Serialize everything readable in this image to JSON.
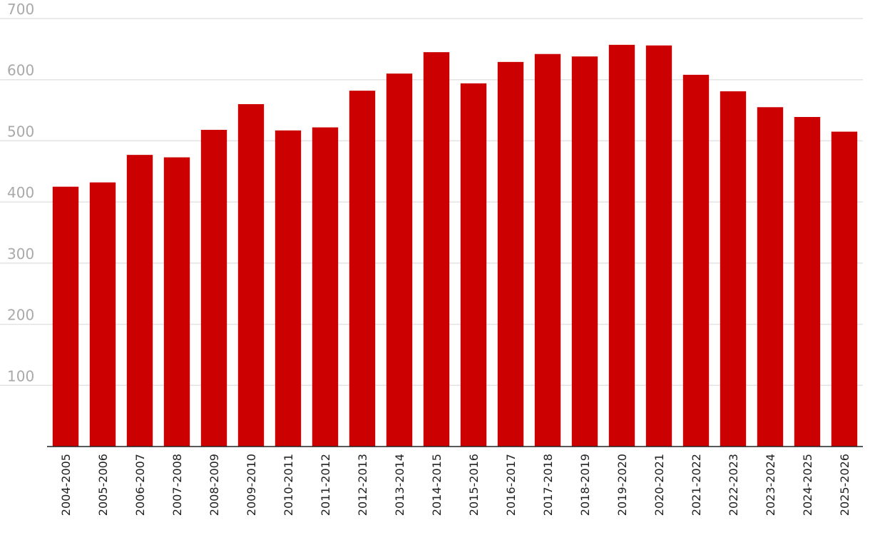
{
  "chart_data": {
    "type": "bar",
    "categories": [
      "2004-2005",
      "2005-2006",
      "2006-2007",
      "2007-2008",
      "2008-2009",
      "2009-2010",
      "2010-2011",
      "2011-2012",
      "2012-2013",
      "2013-2014",
      "2014-2015",
      "2015-2016",
      "2016-2017",
      "2017-2018",
      "2018-2019",
      "2019-2020",
      "2020-2021",
      "2021-2022",
      "2022-2023",
      "2023-2024",
      "2024-2025",
      "2025-2026"
    ],
    "values": [
      425,
      432,
      477,
      473,
      518,
      560,
      517,
      522,
      582,
      610,
      645,
      594,
      629,
      642,
      638,
      657,
      656,
      608,
      581,
      555,
      539,
      515
    ],
    "ylim": [
      0,
      700
    ],
    "yticks": [
      "100",
      "200",
      "300",
      "400",
      "500",
      "600",
      "700"
    ],
    "grid": true,
    "bar_color": "#cc0000",
    "title": "",
    "xlabel": "",
    "ylabel": ""
  }
}
